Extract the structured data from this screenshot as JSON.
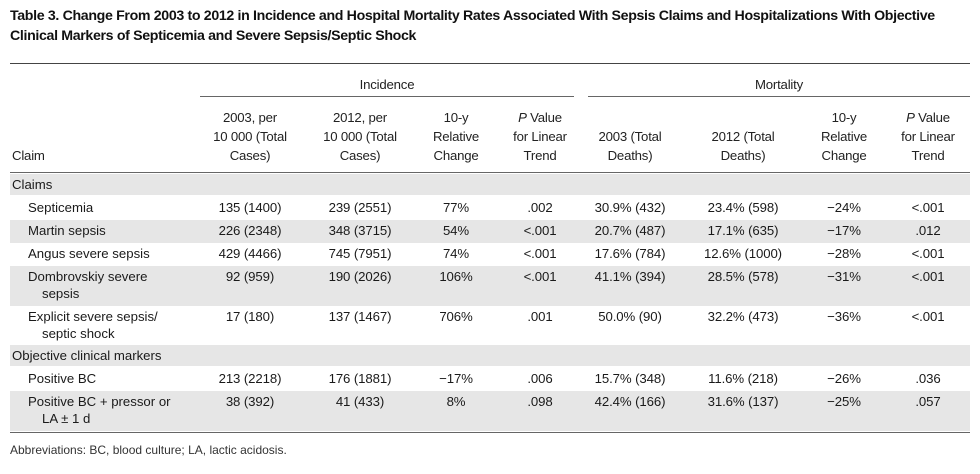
{
  "title": "Table 3.   Change From 2003 to 2012 in Incidence and Hospital Mortality Rates Associated With Sepsis Claims and Hospitalizations With Objective Clinical Markers of Septicemia and Severe Sepsis/Septic Shock",
  "group_headers": {
    "incidence": "Incidence",
    "mortality": "Mortality"
  },
  "columns": {
    "claim": "Claim",
    "inc_2003": [
      "2003, per",
      "10 000 (Total",
      "Cases)"
    ],
    "inc_2012": [
      "2012, per",
      "10 000 (Total",
      "Cases)"
    ],
    "inc_rel": [
      "10-y",
      "Relative",
      "Change"
    ],
    "inc_p": [
      "P Value",
      "for Linear",
      "Trend"
    ],
    "mort_2003": [
      "2003 (Total",
      "Deaths)"
    ],
    "mort_2012": [
      "2012 (Total",
      "Deaths)"
    ],
    "mort_rel": [
      "10-y",
      "Relative",
      "Change"
    ],
    "mort_p": [
      "P Value",
      "for Linear",
      "Trend"
    ]
  },
  "sections": [
    {
      "label": "Claims",
      "rows": [
        {
          "label": [
            "Septicemia"
          ],
          "inc_2003": "135 (1400)",
          "inc_2012": "239 (2551)",
          "inc_rel": "77%",
          "inc_p": ".002",
          "mort_2003": "30.9% (432)",
          "mort_2012": "23.4% (598)",
          "mort_rel": "−24%",
          "mort_p": "<.001"
        },
        {
          "label": [
            "Martin sepsis"
          ],
          "inc_2003": "226 (2348)",
          "inc_2012": "348 (3715)",
          "inc_rel": "54%",
          "inc_p": "<.001",
          "mort_2003": "20.7% (487)",
          "mort_2012": "17.1% (635)",
          "mort_rel": "−17%",
          "mort_p": ".012"
        },
        {
          "label": [
            "Angus severe sepsis"
          ],
          "inc_2003": "429 (4466)",
          "inc_2012": "745 (7951)",
          "inc_rel": "74%",
          "inc_p": "<.001",
          "mort_2003": "17.6% (784)",
          "mort_2012": "12.6% (1000)",
          "mort_rel": "−28%",
          "mort_p": "<.001"
        },
        {
          "label": [
            "Dombrovskiy severe",
            "sepsis"
          ],
          "inc_2003": "92 (959)",
          "inc_2012": "190 (2026)",
          "inc_rel": "106%",
          "inc_p": "<.001",
          "mort_2003": "41.1% (394)",
          "mort_2012": "28.5% (578)",
          "mort_rel": "−31%",
          "mort_p": "<.001"
        },
        {
          "label": [
            "Explicit severe sepsis/",
            "septic shock"
          ],
          "inc_2003": "17 (180)",
          "inc_2012": "137 (1467)",
          "inc_rel": "706%",
          "inc_p": ".001",
          "mort_2003": "50.0% (90)",
          "mort_2012": "32.2% (473)",
          "mort_rel": "−36%",
          "mort_p": "<.001"
        }
      ]
    },
    {
      "label": "Objective clinical markers",
      "rows": [
        {
          "label": [
            "Positive BC"
          ],
          "inc_2003": "213 (2218)",
          "inc_2012": "176 (1881)",
          "inc_rel": "−17%",
          "inc_p": ".006",
          "mort_2003": "15.7% (348)",
          "mort_2012": "11.6% (218)",
          "mort_rel": "−26%",
          "mort_p": ".036"
        },
        {
          "label": [
            "Positive BC + pressor or",
            "LA ± 1 d"
          ],
          "inc_2003": "38 (392)",
          "inc_2012": "41 (433)",
          "inc_rel": "8%",
          "inc_p": ".098",
          "mort_2003": "42.4% (166)",
          "mort_2012": "31.6% (137)",
          "mort_rel": "−25%",
          "mort_p": ".057"
        }
      ]
    }
  ],
  "footnote": "Abbreviations: BC, blood culture; LA, lactic acidosis."
}
